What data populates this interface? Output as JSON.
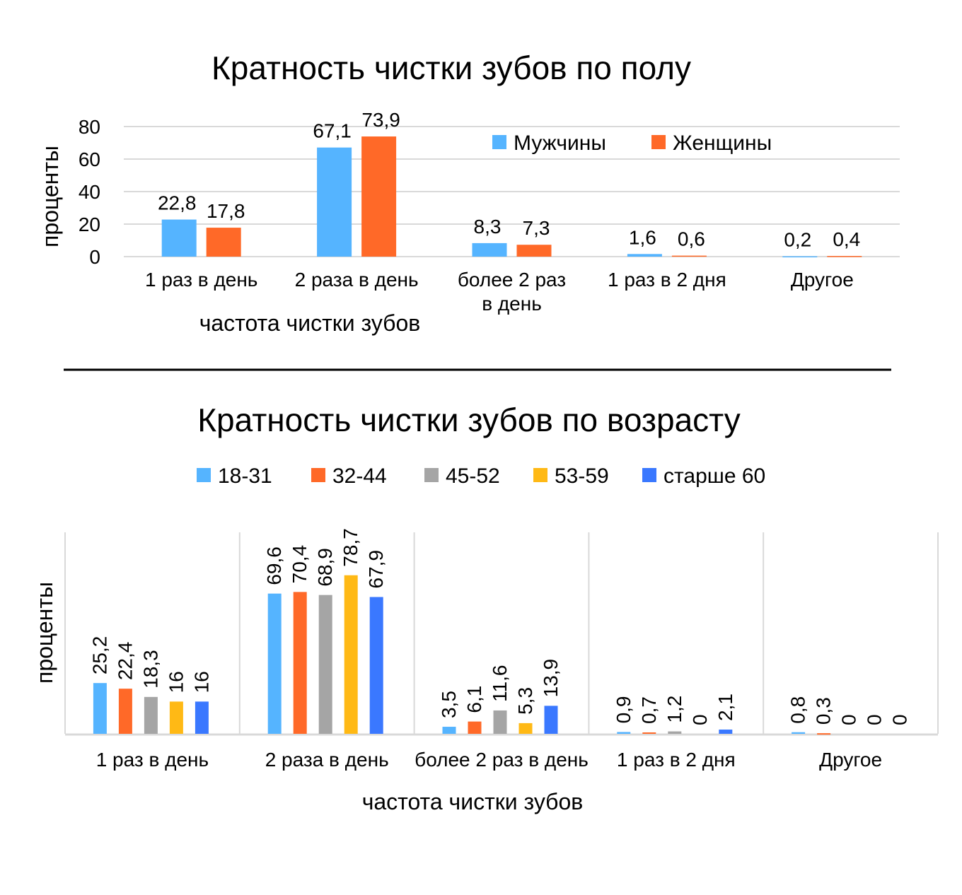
{
  "chart_data": [
    {
      "type": "bar",
      "title": "Кратность чистки зубов по полу",
      "xlabel": "частота чистки зубов",
      "ylabel": "проценты",
      "ylim": [
        0,
        80
      ],
      "yticks": [
        "0",
        "20",
        "40",
        "60",
        "80"
      ],
      "grid": true,
      "legend_position": "top-right",
      "categories": [
        "1 раз в день",
        "2 раза в день",
        "более 2 раз в день",
        "1 раз в 2 дня",
        "Другое"
      ],
      "series": [
        {
          "name": "Мужчины",
          "color": "#55b4ff",
          "values": [
            22.8,
            67.1,
            8.3,
            1.6,
            0.2
          ],
          "labels": [
            "22,8",
            "67,1",
            "8,3",
            "1,6",
            "0,2"
          ]
        },
        {
          "name": "Женщины",
          "color": "#ff6928",
          "values": [
            17.8,
            73.9,
            7.3,
            0.6,
            0.4
          ],
          "labels": [
            "17,8",
            "73,9",
            "7,3",
            "0,6",
            "0,4"
          ]
        }
      ]
    },
    {
      "type": "bar",
      "title": "Кратность чистки зубов по возрасту",
      "xlabel": "частота чистки зубов",
      "ylabel": "проценты",
      "ylim": [
        0,
        100
      ],
      "grid": false,
      "legend_position": "top",
      "categories": [
        "1 раз в день",
        "2 раза в день",
        "более 2 раз в день",
        "1 раз в 2 дня",
        "Другое"
      ],
      "series": [
        {
          "name": "18-31",
          "color": "#55b4ff",
          "values": [
            25.2,
            69.6,
            3.5,
            0.9,
            0.8
          ],
          "labels": [
            "25,2",
            "69,6",
            "3,5",
            "0,9",
            "0,8"
          ]
        },
        {
          "name": "32-44",
          "color": "#ff6928",
          "values": [
            22.4,
            70.4,
            6.1,
            0.7,
            0.3
          ],
          "labels": [
            "22,4",
            "70,4",
            "6,1",
            "0,7",
            "0,3"
          ]
        },
        {
          "name": "45-52",
          "color": "#a5a5a5",
          "values": [
            18.3,
            68.9,
            11.6,
            1.2,
            0
          ],
          "labels": [
            "18,3",
            "68,9",
            "11,6",
            "1,2",
            "0"
          ]
        },
        {
          "name": "53-59",
          "color": "#ffb915",
          "values": [
            16,
            78.7,
            5.3,
            0,
            0
          ],
          "labels": [
            "16",
            "78,7",
            "5,3",
            "0",
            "0"
          ]
        },
        {
          "name": "старше 60",
          "color": "#3a78ff",
          "values": [
            16,
            67.9,
            13.9,
            2.1,
            0
          ],
          "labels": [
            "16",
            "67,9",
            "13,9",
            "2,1",
            "0"
          ]
        }
      ]
    }
  ]
}
